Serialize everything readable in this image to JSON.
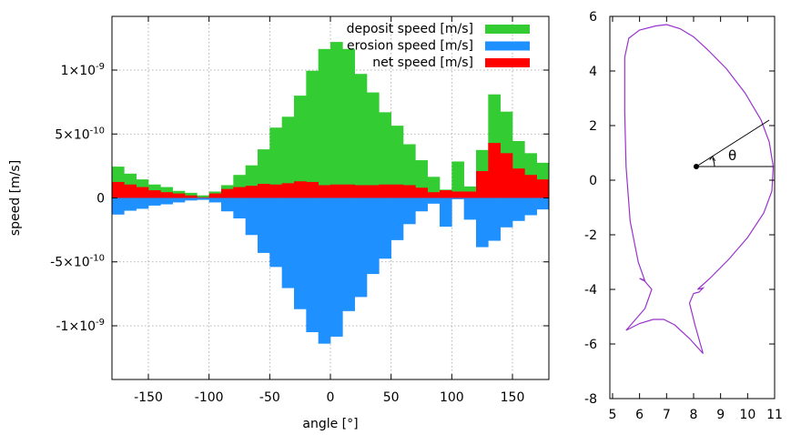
{
  "chart_data": [
    {
      "type": "bar",
      "xlabel": "angle [°]",
      "ylabel": "speed [m/s]",
      "xlim": [
        -180,
        180
      ],
      "ylim": [
        -1.42e-09,
        1.42e-09
      ],
      "xticks": [
        {
          "value": -150,
          "label": "-150"
        },
        {
          "value": -100,
          "label": "-100"
        },
        {
          "value": -50,
          "label": "-50"
        },
        {
          "value": 0,
          "label": "0"
        },
        {
          "value": 50,
          "label": "50"
        },
        {
          "value": 100,
          "label": "100"
        },
        {
          "value": 150,
          "label": "150"
        }
      ],
      "yticks": [
        {
          "value": 1e-09,
          "mant": "1×10",
          "exp": "-9"
        },
        {
          "value": 5e-10,
          "mant": "5×10",
          "exp": "-10"
        },
        {
          "value": 0,
          "mant": "0",
          "exp": ""
        },
        {
          "value": -5e-10,
          "mant": "-5×10",
          "exp": "-10"
        },
        {
          "value": -1e-09,
          "mant": "-1×10",
          "exp": "-9"
        }
      ],
      "grid": true,
      "legend_position": "top-right",
      "bin_width": 10,
      "bin_centers": [
        -175,
        -165,
        -155,
        -145,
        -135,
        -125,
        -115,
        -105,
        -95,
        -85,
        -75,
        -65,
        -55,
        -45,
        -35,
        -25,
        -15,
        -5,
        5,
        15,
        25,
        35,
        45,
        55,
        65,
        75,
        85,
        95,
        105,
        115,
        125,
        135,
        145,
        155,
        165,
        175
      ],
      "series": [
        {
          "name": "deposit speed [m/s]",
          "color": "#33cc33",
          "values": [
            2.45e-10,
            1.9e-10,
            1.45e-10,
            1.05e-10,
            8.5e-11,
            5.5e-11,
            4e-11,
            2e-11,
            5e-11,
            1e-10,
            1.8e-10,
            2.55e-10,
            3.8e-10,
            5.5e-10,
            6.35e-10,
            8e-10,
            9.95e-10,
            1.165e-09,
            1.22e-09,
            1.165e-09,
            9.7e-10,
            8.25e-10,
            6.7e-10,
            5.65e-10,
            4.2e-10,
            2.95e-10,
            1.65e-10,
            6.5e-11,
            2.85e-10,
            9e-11,
            3.75e-10,
            8.1e-10,
            6.75e-10,
            4.45e-10,
            3.5e-10,
            2.75e-10
          ]
        },
        {
          "name": "erosion speed [m/s]",
          "color": "#1e90ff",
          "values": [
            -1.3e-10,
            -1e-10,
            -8.5e-11,
            -6e-11,
            -5e-11,
            -3.5e-11,
            -2e-11,
            -1.5e-11,
            -3.5e-11,
            -1.05e-10,
            -1.6e-10,
            -2.9e-10,
            -4.3e-10,
            -5.4e-10,
            -7.05e-10,
            -8.7e-10,
            -1.05e-09,
            -1.14e-09,
            -1.085e-09,
            -8.85e-10,
            -7.75e-10,
            -5.95e-10,
            -4.75e-10,
            -3.3e-10,
            -2.05e-10,
            -1.05e-10,
            -4.5e-11,
            -2.25e-10,
            -1e-11,
            -1.7e-10,
            -3.85e-10,
            -3.35e-10,
            -2.3e-10,
            -1.8e-10,
            -1.35e-10,
            -9e-11
          ]
        },
        {
          "name": "net speed [m/s]",
          "color": "#ff0000",
          "values": [
            1.25e-10,
            1.05e-10,
            8.5e-11,
            6e-11,
            4.5e-11,
            3.5e-11,
            2e-11,
            5e-12,
            3.5e-11,
            7e-11,
            8.5e-11,
            9.5e-11,
            1.1e-10,
            1.05e-10,
            1.15e-10,
            1.3e-10,
            1.25e-10,
            1e-10,
            1.05e-10,
            1.05e-10,
            1e-10,
            1e-10,
            1.05e-10,
            1.05e-10,
            1e-10,
            8e-11,
            4.5e-11,
            6e-11,
            5e-11,
            5e-11,
            2.1e-10,
            4.3e-10,
            3.5e-10,
            2.3e-10,
            1.8e-10,
            1.45e-10
          ]
        }
      ]
    },
    {
      "type": "line",
      "xlim": [
        4.9,
        11
      ],
      "ylim": [
        -8,
        6
      ],
      "xticks": [
        "5",
        "6",
        "7",
        "8",
        "9",
        "10",
        "11"
      ],
      "yticks": [
        "6",
        "4",
        "2",
        "0",
        "-2",
        "-4",
        "-6",
        "-8"
      ],
      "grid": false,
      "outline_color": "#9933cc",
      "outline": [
        [
          5.45,
          4.5
        ],
        [
          5.6,
          5.2
        ],
        [
          6.0,
          5.5
        ],
        [
          6.6,
          5.65
        ],
        [
          7.0,
          5.7
        ],
        [
          7.5,
          5.55
        ],
        [
          8.0,
          5.25
        ],
        [
          8.5,
          4.8
        ],
        [
          9.2,
          4.1
        ],
        [
          9.9,
          3.2
        ],
        [
          10.5,
          2.2
        ],
        [
          10.8,
          1.4
        ],
        [
          10.95,
          0.5
        ],
        [
          10.9,
          -0.4
        ],
        [
          10.6,
          -1.2
        ],
        [
          10.0,
          -2.1
        ],
        [
          9.3,
          -2.9
        ],
        [
          8.6,
          -3.6
        ],
        [
          8.15,
          -4.0
        ],
        [
          8.35,
          -3.95
        ],
        [
          8.2,
          -4.1
        ],
        [
          8.0,
          -4.15
        ],
        [
          7.85,
          -4.5
        ],
        [
          8.05,
          -5.3
        ],
        [
          8.35,
          -6.35
        ],
        [
          7.85,
          -5.8
        ],
        [
          7.3,
          -5.3
        ],
        [
          6.9,
          -5.1
        ],
        [
          6.5,
          -5.1
        ],
        [
          6.0,
          -5.25
        ],
        [
          5.5,
          -5.5
        ],
        [
          6.2,
          -4.7
        ],
        [
          6.45,
          -4.0
        ],
        [
          6.15,
          -3.65
        ],
        [
          6.0,
          -3.6
        ],
        [
          6.2,
          -3.7
        ],
        [
          5.95,
          -3.0
        ],
        [
          5.65,
          -1.5
        ],
        [
          5.5,
          0.5
        ],
        [
          5.45,
          2.5
        ],
        [
          5.45,
          4.5
        ]
      ],
      "center": [
        8.1,
        0.5
      ],
      "ray_end": [
        10.8,
        2.2
      ],
      "baseline_end": [
        10.95,
        0.5
      ],
      "angle_label": "θ"
    }
  ]
}
